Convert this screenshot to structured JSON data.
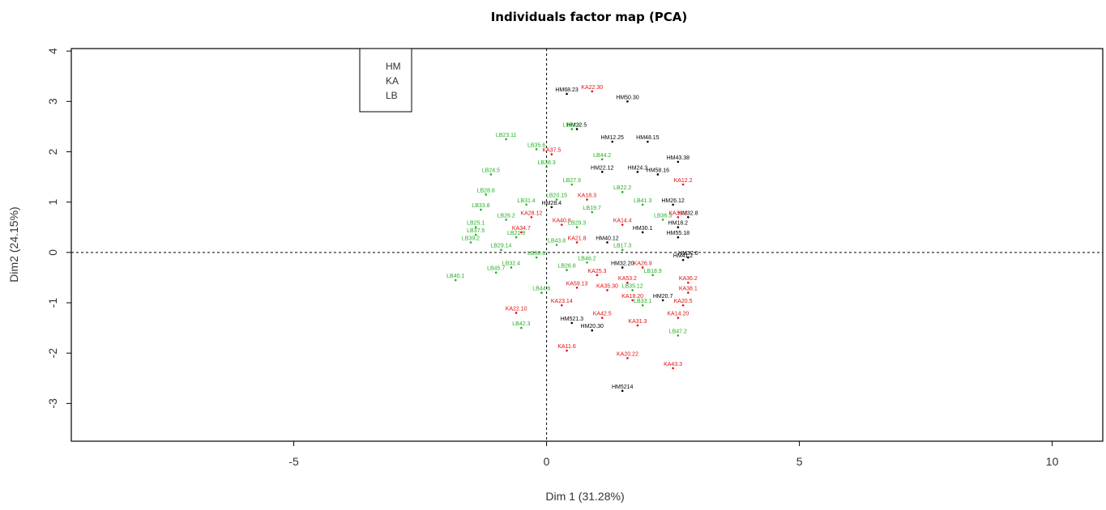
{
  "chart_data": {
    "type": "scatter",
    "title": "Individuals factor map (PCA)",
    "xlabel": "Dim 1 (31.28%)",
    "ylabel": "Dim2 (24.15%)",
    "xlim": [
      -9.4,
      11.0
    ],
    "ylim": [
      -3.75,
      4.05
    ],
    "xticks": [
      -5,
      0,
      5,
      10
    ],
    "yticks": [
      -3,
      -2,
      -1,
      0,
      1,
      2,
      3,
      4
    ],
    "reference_lines": {
      "x": 0,
      "y": 0,
      "style": "dashed"
    },
    "grid": false,
    "legend": {
      "placement": "top-left",
      "entries": [
        "HM",
        "KA",
        "LB"
      ]
    },
    "series": [
      {
        "name": "HM",
        "color": "#000000",
        "points": [
          {
            "x": 0.4,
            "y": 3.15,
            "label": "HM68.23"
          },
          {
            "x": 1.6,
            "y": 3.0,
            "label": "HM50.30"
          },
          {
            "x": 0.6,
            "y": 2.45,
            "label": "HM22.5"
          },
          {
            "x": 2.0,
            "y": 2.2,
            "label": "HM48.15"
          },
          {
            "x": 1.3,
            "y": 2.2,
            "label": "HM12.25"
          },
          {
            "x": 2.6,
            "y": 1.8,
            "label": "HM43.38"
          },
          {
            "x": 1.1,
            "y": 1.6,
            "label": "HM22.12"
          },
          {
            "x": 1.8,
            "y": 1.6,
            "label": "HM24.3"
          },
          {
            "x": 2.2,
            "y": 1.55,
            "label": "HM58.16"
          },
          {
            "x": 2.5,
            "y": 0.95,
            "label": "HM26.12"
          },
          {
            "x": 2.8,
            "y": 0.7,
            "label": "HM32.8"
          },
          {
            "x": 2.6,
            "y": 0.5,
            "label": "HM18.2"
          },
          {
            "x": 2.6,
            "y": 0.3,
            "label": "HM55.18"
          },
          {
            "x": 1.2,
            "y": 0.2,
            "label": "HM40.12"
          },
          {
            "x": 2.7,
            "y": -0.15,
            "label": "HM41.2"
          },
          {
            "x": 2.8,
            "y": -0.1,
            "label": "HM37.6"
          },
          {
            "x": 1.5,
            "y": -0.3,
            "label": "HM32.20"
          },
          {
            "x": 2.3,
            "y": -0.95,
            "label": "HM20.7"
          },
          {
            "x": 0.5,
            "y": -1.4,
            "label": "HM521.3"
          },
          {
            "x": 0.9,
            "y": -1.55,
            "label": "HM20.30"
          },
          {
            "x": 1.5,
            "y": -2.75,
            "label": "HM5214"
          },
          {
            "x": 0.1,
            "y": 0.9,
            "label": "HM28.4"
          },
          {
            "x": 1.9,
            "y": 0.4,
            "label": "HM30.1"
          }
        ]
      },
      {
        "name": "KA",
        "color": "#e01010",
        "points": [
          {
            "x": 0.9,
            "y": 3.2,
            "label": "KA22.30"
          },
          {
            "x": 0.1,
            "y": 1.95,
            "label": "KA37.5"
          },
          {
            "x": 2.7,
            "y": 1.35,
            "label": "KA12.2"
          },
          {
            "x": 0.8,
            "y": 1.05,
            "label": "KA18.3"
          },
          {
            "x": -0.3,
            "y": 0.7,
            "label": "KA28.12"
          },
          {
            "x": 0.3,
            "y": 0.55,
            "label": "KA40.6"
          },
          {
            "x": 2.6,
            "y": 0.7,
            "label": "KA33.2"
          },
          {
            "x": 1.5,
            "y": 0.55,
            "label": "KA14.4"
          },
          {
            "x": 0.6,
            "y": 0.2,
            "label": "KA21.8"
          },
          {
            "x": 1.0,
            "y": -0.45,
            "label": "KA25.3"
          },
          {
            "x": 1.6,
            "y": -0.6,
            "label": "KA53.2"
          },
          {
            "x": 2.8,
            "y": -0.6,
            "label": "KA36.2"
          },
          {
            "x": 2.8,
            "y": -0.8,
            "label": "KA38.1"
          },
          {
            "x": 0.6,
            "y": -0.7,
            "label": "KA59.13"
          },
          {
            "x": 1.2,
            "y": -0.75,
            "label": "KA35.30"
          },
          {
            "x": 1.7,
            "y": -0.95,
            "label": "KA18.20"
          },
          {
            "x": 0.3,
            "y": -1.05,
            "label": "KA23.14"
          },
          {
            "x": 2.7,
            "y": -1.05,
            "label": "KA20.5"
          },
          {
            "x": -0.6,
            "y": -1.2,
            "label": "KA22.10"
          },
          {
            "x": 2.6,
            "y": -1.3,
            "label": "KA14.20"
          },
          {
            "x": 1.8,
            "y": -1.45,
            "label": "KA31.3"
          },
          {
            "x": 1.1,
            "y": -1.3,
            "label": "KA42.5"
          },
          {
            "x": 0.4,
            "y": -1.95,
            "label": "KA11.6"
          },
          {
            "x": 1.6,
            "y": -2.1,
            "label": "KA20.22"
          },
          {
            "x": 2.5,
            "y": -2.3,
            "label": "KA43.3"
          },
          {
            "x": -0.5,
            "y": 0.4,
            "label": "KA34.7"
          },
          {
            "x": 1.9,
            "y": -0.3,
            "label": "KA26.9"
          }
        ]
      },
      {
        "name": "LB",
        "color": "#22b022",
        "points": [
          {
            "x": -0.8,
            "y": 2.25,
            "label": "LB23.11"
          },
          {
            "x": 0.5,
            "y": 2.45,
            "label": "LB22.4"
          },
          {
            "x": -0.2,
            "y": 2.05,
            "label": "LB35.6"
          },
          {
            "x": 1.1,
            "y": 1.85,
            "label": "LB44.2"
          },
          {
            "x": 0.0,
            "y": 1.7,
            "label": "LB38.3"
          },
          {
            "x": -1.1,
            "y": 1.55,
            "label": "LB24.5"
          },
          {
            "x": 0.5,
            "y": 1.35,
            "label": "LB27.9"
          },
          {
            "x": 1.5,
            "y": 1.2,
            "label": "LB22.2"
          },
          {
            "x": -1.2,
            "y": 1.15,
            "label": "LB28.6"
          },
          {
            "x": 0.2,
            "y": 1.05,
            "label": "LB20.15"
          },
          {
            "x": -0.4,
            "y": 0.95,
            "label": "LB31.4"
          },
          {
            "x": -1.3,
            "y": 0.85,
            "label": "LB33.8"
          },
          {
            "x": 1.9,
            "y": 0.95,
            "label": "LB41.3"
          },
          {
            "x": 0.9,
            "y": 0.8,
            "label": "LB19.7"
          },
          {
            "x": -0.8,
            "y": 0.65,
            "label": "LB26.2"
          },
          {
            "x": 2.3,
            "y": 0.65,
            "label": "LB36.3"
          },
          {
            "x": -1.4,
            "y": 0.5,
            "label": "LB25.1"
          },
          {
            "x": 0.6,
            "y": 0.5,
            "label": "LB29.3"
          },
          {
            "x": -1.4,
            "y": 0.35,
            "label": "LB37.5"
          },
          {
            "x": -0.6,
            "y": 0.3,
            "label": "LB21.9"
          },
          {
            "x": -1.5,
            "y": 0.2,
            "label": "LB39.2"
          },
          {
            "x": 0.2,
            "y": 0.15,
            "label": "LB43.8"
          },
          {
            "x": 1.5,
            "y": 0.05,
            "label": "LB17.3"
          },
          {
            "x": -0.2,
            "y": -0.1,
            "label": "LB30.6"
          },
          {
            "x": 0.8,
            "y": -0.2,
            "label": "LB46.2"
          },
          {
            "x": -0.7,
            "y": -0.3,
            "label": "LB32.4"
          },
          {
            "x": -1.0,
            "y": -0.4,
            "label": "LB45.7"
          },
          {
            "x": -1.8,
            "y": -0.55,
            "label": "LB40.1"
          },
          {
            "x": -0.1,
            "y": -0.8,
            "label": "LB44.6"
          },
          {
            "x": 1.7,
            "y": -0.75,
            "label": "LB35.12"
          },
          {
            "x": 2.1,
            "y": -0.45,
            "label": "LB18.9"
          },
          {
            "x": 1.9,
            "y": -1.05,
            "label": "LB33.1"
          },
          {
            "x": -0.5,
            "y": -1.5,
            "label": "LB42.3"
          },
          {
            "x": 2.6,
            "y": -1.65,
            "label": "LB47.2"
          },
          {
            "x": 0.4,
            "y": -0.35,
            "label": "LB26.8"
          },
          {
            "x": -0.9,
            "y": 0.05,
            "label": "LB29.14"
          }
        ]
      }
    ]
  }
}
